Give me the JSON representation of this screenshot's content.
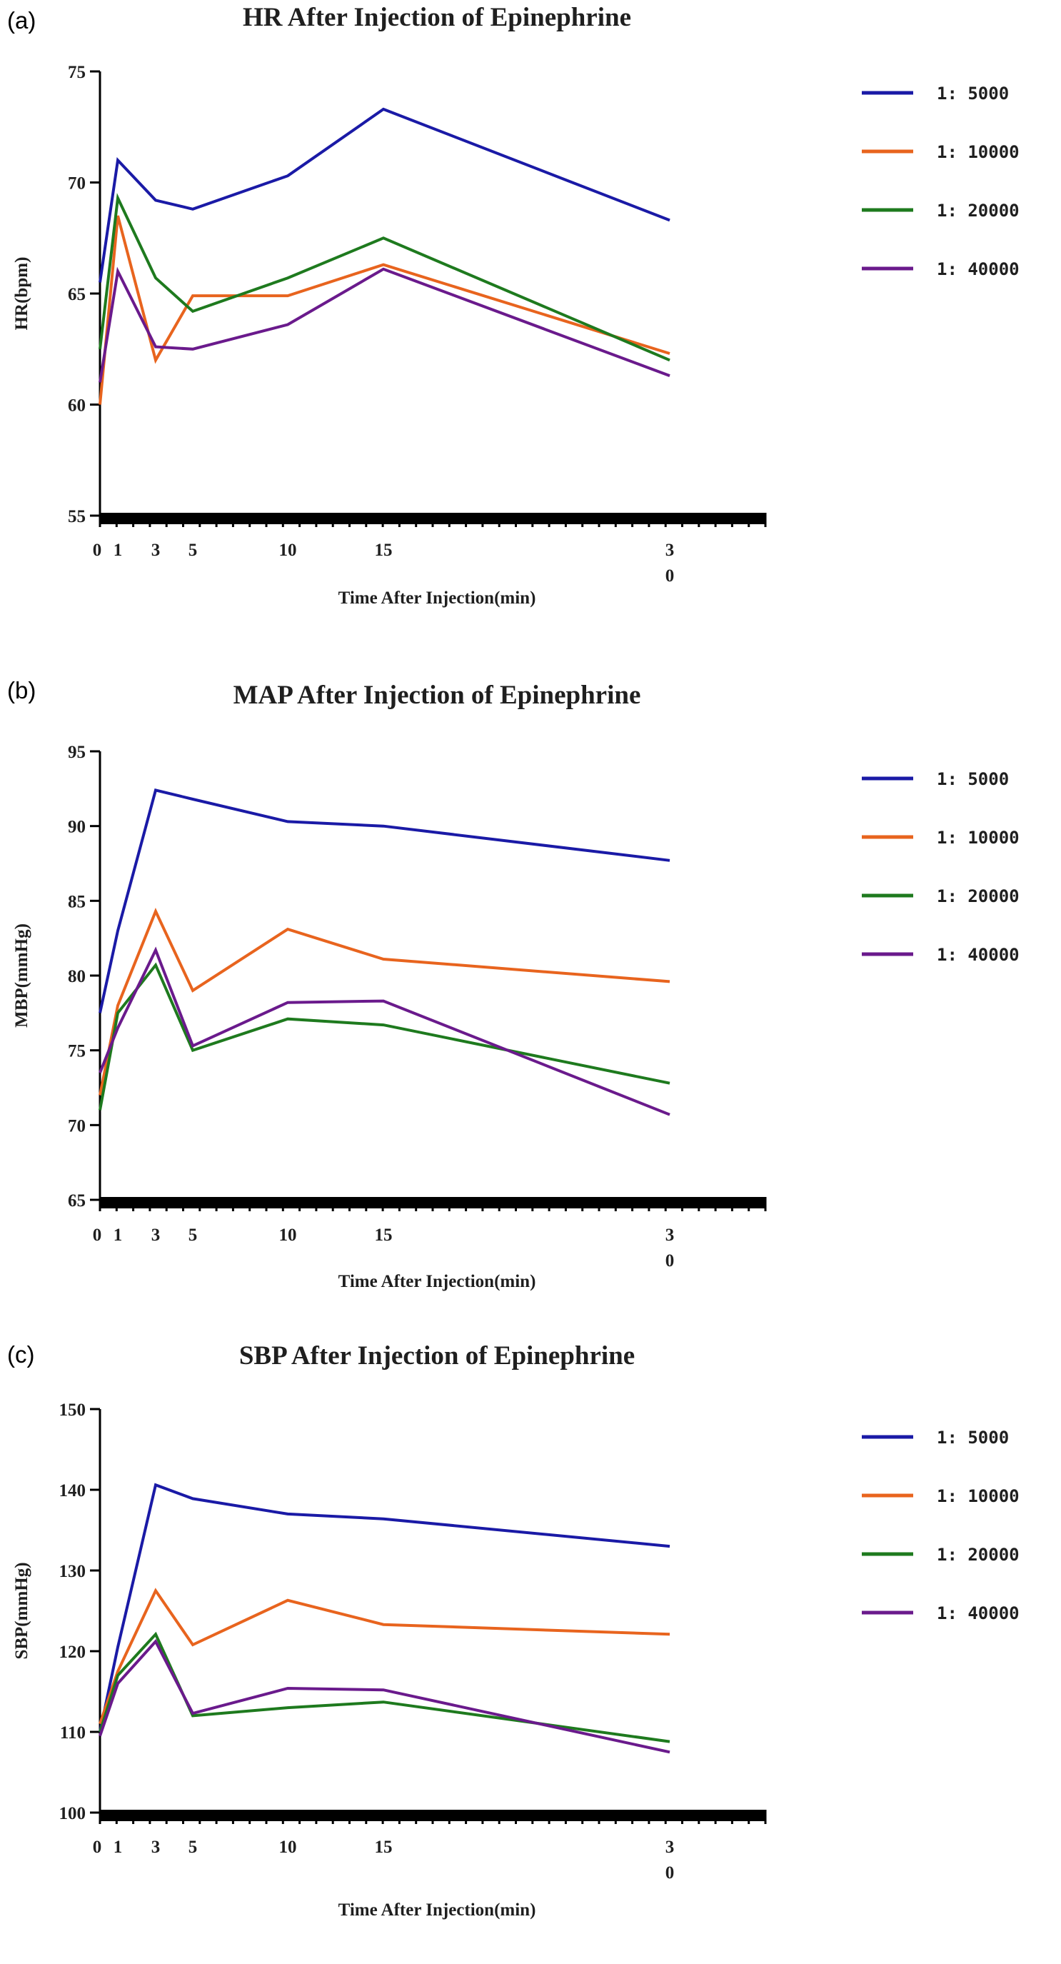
{
  "chart_data": [
    {
      "type": "line",
      "panel": "(a)",
      "title": "HR After Injection of Epinephrine",
      "xlabel": "Time After Injection(min)",
      "ylabel": "HR(bpm)",
      "x": [
        0,
        1,
        3,
        5,
        10,
        15,
        30
      ],
      "x_tick_labels": [
        "0",
        "1",
        "3",
        "5",
        "10",
        "15",
        "30"
      ],
      "ylim": [
        55,
        75
      ],
      "yticks": [
        55,
        60,
        65,
        70,
        75
      ],
      "legend_position": "right",
      "grid": false,
      "series": [
        {
          "name": "1: 5000",
          "color": "#1a1aa6",
          "values": [
            65.5,
            71.0,
            69.2,
            68.8,
            70.3,
            73.3,
            68.3
          ]
        },
        {
          "name": "1: 10000",
          "color": "#e8641e",
          "values": [
            60.0,
            68.5,
            62.0,
            64.9,
            64.9,
            66.3,
            62.3
          ]
        },
        {
          "name": "1: 20000",
          "color": "#1e7a1e",
          "values": [
            62.5,
            69.3,
            65.7,
            64.2,
            65.7,
            67.5,
            62.0
          ]
        },
        {
          "name": "1: 40000",
          "color": "#6a1a8c",
          "values": [
            61.0,
            66.0,
            62.6,
            62.5,
            63.6,
            66.1,
            61.3
          ]
        }
      ]
    },
    {
      "type": "line",
      "panel": "(b)",
      "title": "MAP After Injection of Epinephrine",
      "xlabel": "Time After Injection(min)",
      "ylabel": "MBP(mmHg)",
      "x": [
        0,
        1,
        3,
        5,
        10,
        15,
        30
      ],
      "x_tick_labels": [
        "0",
        "1",
        "3",
        "5",
        "10",
        "15",
        "30"
      ],
      "ylim": [
        65,
        95
      ],
      "yticks": [
        65,
        70,
        75,
        80,
        85,
        90,
        95
      ],
      "legend_position": "right",
      "grid": false,
      "series": [
        {
          "name": "1: 5000",
          "color": "#1a1aa6",
          "values": [
            77.5,
            83.0,
            92.4,
            91.8,
            90.3,
            90.0,
            87.7
          ]
        },
        {
          "name": "1: 10000",
          "color": "#e8641e",
          "values": [
            72.0,
            78.0,
            84.3,
            79.0,
            83.1,
            81.1,
            79.6
          ]
        },
        {
          "name": "1: 20000",
          "color": "#1e7a1e",
          "values": [
            71.0,
            77.5,
            80.7,
            75.0,
            77.1,
            76.7,
            72.8
          ]
        },
        {
          "name": "1: 40000",
          "color": "#6a1a8c",
          "values": [
            73.5,
            76.5,
            81.7,
            75.3,
            78.2,
            78.3,
            70.7
          ]
        }
      ]
    },
    {
      "type": "line",
      "panel": "(c)",
      "title": "SBP After Injection of Epinephrine",
      "xlabel": "Time After Injection(min)",
      "ylabel": "SBP(mmHg)",
      "x": [
        0,
        1,
        3,
        5,
        10,
        15,
        30
      ],
      "x_tick_labels": [
        "0",
        "1",
        "3",
        "5",
        "10",
        "15",
        "30"
      ],
      "ylim": [
        100,
        150
      ],
      "yticks": [
        100,
        110,
        120,
        130,
        140,
        150
      ],
      "legend_position": "right",
      "grid": false,
      "series": [
        {
          "name": "1: 5000",
          "color": "#1a1aa6",
          "values": [
            110.0,
            120.5,
            140.6,
            138.9,
            137.0,
            136.4,
            133.0
          ]
        },
        {
          "name": "1: 10000",
          "color": "#e8641e",
          "values": [
            111.0,
            117.5,
            127.5,
            120.8,
            126.3,
            123.3,
            122.1
          ]
        },
        {
          "name": "1: 20000",
          "color": "#1e7a1e",
          "values": [
            110.0,
            117.0,
            122.1,
            112.0,
            113.0,
            113.7,
            108.8
          ]
        },
        {
          "name": "1: 40000",
          "color": "#6a1a8c",
          "values": [
            109.5,
            116.0,
            121.2,
            112.3,
            115.4,
            115.2,
            107.5
          ]
        }
      ]
    }
  ]
}
